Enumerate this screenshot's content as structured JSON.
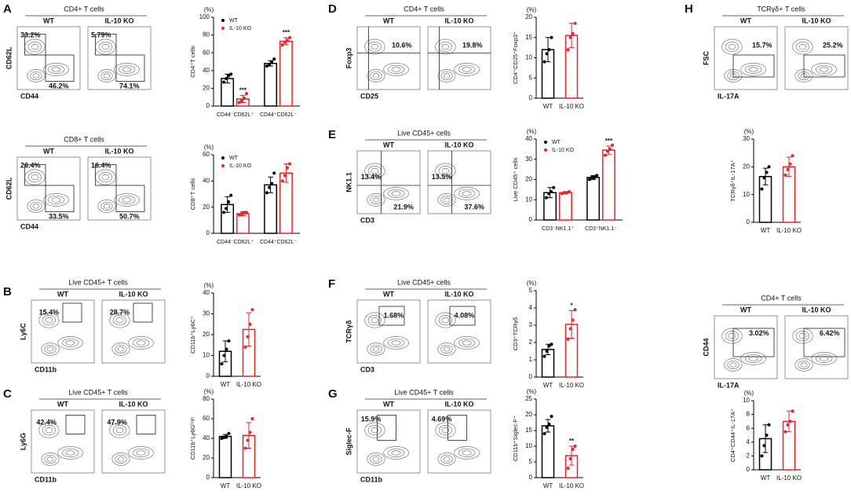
{
  "flow_panels": [
    {
      "panel": "A",
      "title": "CD4+ T cells",
      "ylabel": "CD62L",
      "xlabel": "CD44",
      "plots": [
        {
          "label": "WT",
          "gates": [
            "33.2%",
            "46.2%"
          ]
        },
        {
          "label": "IL-10 KO",
          "gates": [
            "5.79%",
            "74.1%"
          ]
        }
      ]
    },
    {
      "title": "CD8+ T cells",
      "ylabel": "CD62L",
      "xlabel": "CD44",
      "plots": [
        {
          "label": "WT",
          "gates": [
            "26.4%",
            "33.5%"
          ]
        },
        {
          "label": "IL-10 KO",
          "gates": [
            "16.4%",
            "50.7%"
          ]
        }
      ]
    },
    {
      "panel": "B",
      "title": "Live CD45+ T cells",
      "ylabel": "Ly6C",
      "xlabel": "CD11b",
      "plots": [
        {
          "label": "WT",
          "gates": [
            "15.4%"
          ]
        },
        {
          "label": "IL-10 KO",
          "gates": [
            "28.7%"
          ]
        }
      ]
    },
    {
      "panel": "C",
      "title": "Live CD45+ T cells",
      "ylabel": "Ly6G",
      "xlabel": "CD11b",
      "plots": [
        {
          "label": "WT",
          "gates": [
            "42.4%"
          ]
        },
        {
          "label": "IL-10 KO",
          "gates": [
            "47.9%"
          ]
        }
      ]
    },
    {
      "panel": "D",
      "title": "CD4+ T cells",
      "ylabel": "Foxp3",
      "xlabel": "CD25",
      "plots": [
        {
          "label": "WT",
          "gates": [
            "10.6%"
          ]
        },
        {
          "label": "IL-10 KO",
          "gates": [
            "19.8%"
          ]
        }
      ]
    },
    {
      "panel": "E",
      "title": "Live CD45+ cells",
      "ylabel": "NK1.1",
      "xlabel": "CD3",
      "plots": [
        {
          "label": "WT",
          "gates": [
            "13.4%",
            "21.9%"
          ]
        },
        {
          "label": "IL-10 KO",
          "gates": [
            "13.5%",
            "37.6%"
          ]
        }
      ]
    },
    {
      "panel": "F",
      "title": "Live CD45+ cells",
      "ylabel": "TCRγδ",
      "xlabel": "CD3",
      "plots": [
        {
          "label": "WT",
          "gates": [
            "1.68%"
          ]
        },
        {
          "label": "IL-10 KO",
          "gates": [
            "4.08%"
          ]
        }
      ]
    },
    {
      "panel": "G",
      "title": "Live CD45+ T cells",
      "ylabel": "Siglec-F",
      "xlabel": "CD11b",
      "plots": [
        {
          "label": "WT",
          "gates": [
            "15.9%"
          ]
        },
        {
          "label": "IL-10 KO",
          "gates": [
            "4.69%"
          ]
        }
      ]
    },
    {
      "panel": "H",
      "title": "TCRγδ+ T cells",
      "ylabel": "FSC",
      "xlabel": "IL-17A",
      "plots": [
        {
          "label": "WT",
          "gates": [
            "15.7%"
          ]
        },
        {
          "label": "IL-10 KO",
          "gates": [
            "25.2%"
          ]
        }
      ]
    },
    {
      "title": "CD4+ T cells",
      "ylabel": "CD44",
      "xlabel": "IL-17A",
      "plots": [
        {
          "label": "WT",
          "gates": [
            "3.02%"
          ]
        },
        {
          "label": "IL-10 KO",
          "gates": [
            "6.42%"
          ]
        }
      ]
    }
  ],
  "chart_data": [
    {
      "type": "bar",
      "unit": "(%)",
      "ylabel": "CD4⁺T cells",
      "categories": [
        "CD44⁻CD62L⁺",
        "CD44⁺CD62L⁻"
      ],
      "series": [
        {
          "name": "WT",
          "color": "#000000",
          "values": [
            31,
            48
          ],
          "errors": [
            5,
            3
          ],
          "points": [
            [
              27,
              31,
              34,
              36
            ],
            [
              45,
              47,
              50,
              53
            ]
          ]
        },
        {
          "name": "IL-10 KO",
          "color": "#e8232a",
          "values": [
            8,
            73
          ],
          "errors": [
            4,
            4
          ],
          "points": [
            [
              4,
              6,
              9,
              14
            ],
            [
              69,
              72,
              74,
              77
            ]
          ]
        }
      ],
      "ylim": [
        0,
        100
      ],
      "yticks": [
        0,
        20,
        40,
        60,
        80,
        100
      ],
      "legend": "upper left",
      "annotations": [
        {
          "text": "***",
          "series": 1,
          "category": 0
        },
        {
          "text": "***",
          "series": 1,
          "category": 1
        }
      ]
    },
    {
      "type": "bar",
      "unit": "(%)",
      "ylabel": "CD8⁺T cells",
      "categories": [
        "CD44⁻CD62L⁺",
        "CD44⁺CD62L⁻"
      ],
      "series": [
        {
          "name": "WT",
          "color": "#000000",
          "values": [
            22,
            37
          ],
          "errors": [
            6,
            6
          ],
          "points": [
            [
              16,
              19,
              24,
              29
            ],
            [
              31,
              35,
              38,
              46
            ]
          ]
        },
        {
          "name": "IL-10 KO",
          "color": "#e8232a",
          "values": [
            15,
            46
          ],
          "errors": [
            1.5,
            7
          ],
          "points": [
            [
              14,
              15,
              16,
              16
            ],
            [
              40,
              44,
              50,
              53
            ]
          ]
        }
      ],
      "ylim": [
        0,
        60
      ],
      "yticks": [
        0,
        20,
        40,
        60
      ],
      "legend": "upper left"
    },
    {
      "type": "bar",
      "unit": "(%)",
      "ylabel": "CD11b⁺Ly6C⁺",
      "categories": [
        "WT",
        "IL-10 KO"
      ],
      "series": [
        {
          "colors": [
            "#000000",
            "#e8232a"
          ],
          "values": [
            12,
            22.5
          ],
          "errors": [
            5,
            8
          ],
          "points": [
            [
              6,
              10,
              13,
              17
            ],
            [
              14,
              19,
              25,
              32
            ]
          ]
        }
      ],
      "ylim": [
        0,
        40
      ],
      "yticks": [
        0,
        10,
        20,
        30,
        40
      ]
    },
    {
      "type": "bar",
      "unit": "(%)",
      "ylabel": "CD11b⁺Ly6Gʰⁱᵍʰ",
      "categories": [
        "WT",
        "IL-10 KO"
      ],
      "series": [
        {
          "colors": [
            "#000000",
            "#e8232a"
          ],
          "values": [
            42,
            43
          ],
          "errors": [
            2,
            13
          ],
          "points": [
            [
              40,
              41,
              42,
              45
            ],
            [
              30,
              38,
              46,
              60
            ]
          ]
        }
      ],
      "ylim": [
        0,
        80
      ],
      "yticks": [
        0,
        20,
        40,
        60,
        80
      ]
    },
    {
      "type": "bar",
      "unit": "(%)",
      "ylabel": "CD4⁺CD25⁺Foxp3⁺",
      "categories": [
        "WT",
        "IL-10 KO"
      ],
      "series": [
        {
          "colors": [
            "#000000",
            "#e8232a"
          ],
          "values": [
            12,
            15.5
          ],
          "errors": [
            3,
            3
          ],
          "points": [
            [
              9,
              11,
              12,
              15
            ],
            [
              12,
              15,
              16,
              18.5
            ]
          ]
        }
      ],
      "ylim": [
        0,
        20
      ],
      "yticks": [
        0,
        5,
        10,
        15,
        20
      ]
    },
    {
      "type": "bar",
      "unit": "(%)",
      "ylabel": "Live CD45⁺ cells",
      "categories": [
        "CD3⁻NK1.1⁺",
        "CD3⁺NK1.1⁻"
      ],
      "series": [
        {
          "name": "WT",
          "color": "#000000",
          "values": [
            13.5,
            21
          ],
          "errors": [
            2.5,
            1
          ],
          "points": [
            [
              11,
              13,
              14,
              16
            ],
            [
              20,
              21,
              21,
              22
            ]
          ]
        },
        {
          "name": "IL-10 KO",
          "color": "#e8232a",
          "values": [
            13.5,
            34.5
          ],
          "errors": [
            0.5,
            2
          ],
          "points": [
            [
              13,
              13.5,
              13.5,
              14
            ],
            [
              32,
              34,
              35,
              37
            ]
          ]
        }
      ],
      "ylim": [
        0,
        40
      ],
      "yticks": [
        0,
        10,
        20,
        30,
        40
      ],
      "legend": "upper left",
      "annotations": [
        {
          "text": "***",
          "series": 1,
          "category": 1
        }
      ]
    },
    {
      "type": "bar",
      "unit": "(%)",
      "ylabel": "CD3⁺TCRγδ",
      "categories": [
        "WT",
        "IL-10 KO"
      ],
      "series": [
        {
          "colors": [
            "#000000",
            "#e8232a"
          ],
          "values": [
            1.6,
            3.05
          ],
          "errors": [
            0.3,
            0.8
          ],
          "points": [
            [
              1.2,
              1.5,
              1.8,
              1.9
            ],
            [
              2.2,
              2.8,
              3.3,
              3.9
            ]
          ]
        }
      ],
      "ylim": [
        0,
        5
      ],
      "yticks": [
        0,
        1,
        2,
        3,
        4,
        5
      ],
      "annotations": [
        {
          "text": "*",
          "series": 0,
          "category": 1
        }
      ]
    },
    {
      "type": "bar",
      "unit": "(%)",
      "ylabel": "CD11b⁺Siglec-F⁺",
      "categories": [
        "WT",
        "IL-10 KO"
      ],
      "series": [
        {
          "colors": [
            "#000000",
            "#e8232a"
          ],
          "values": [
            16.5,
            7
          ],
          "errors": [
            2,
            3
          ],
          "points": [
            [
              14,
              16,
              17,
              19.5
            ],
            [
              3,
              6,
              9,
              10
            ]
          ]
        }
      ],
      "ylim": [
        0,
        25
      ],
      "yticks": [
        0,
        5,
        10,
        15,
        20,
        25
      ],
      "annotations": [
        {
          "text": "**",
          "series": 0,
          "category": 1
        }
      ]
    },
    {
      "type": "bar",
      "unit": "(%)",
      "ylabel": "TCRγδ⁺IL-17A⁺",
      "categories": [
        "WT",
        "IL-10 KO"
      ],
      "series": [
        {
          "colors": [
            "#000000",
            "#e8232a"
          ],
          "values": [
            16.5,
            20
          ],
          "errors": [
            3,
            3.5
          ],
          "points": [
            [
              12,
              16,
              18,
              20
            ],
            [
              17,
              19,
              21,
              24
            ]
          ]
        }
      ],
      "ylim": [
        0,
        30
      ],
      "yticks": [
        0,
        10,
        20,
        30
      ]
    },
    {
      "type": "bar",
      "unit": "(%)",
      "ylabel": "CD4⁺CD44⁺IL-17A⁺",
      "categories": [
        "WT",
        "IL-10 KO"
      ],
      "series": [
        {
          "colors": [
            "#000000",
            "#e8232a"
          ],
          "values": [
            4.5,
            7
          ],
          "errors": [
            2,
            1.5
          ],
          "points": [
            [
              2,
              3.5,
              5,
              6.5
            ],
            [
              5.5,
              6.5,
              7,
              8.5
            ]
          ]
        }
      ],
      "ylim": [
        0,
        10
      ],
      "yticks": [
        0,
        2,
        4,
        6,
        8,
        10
      ]
    }
  ]
}
